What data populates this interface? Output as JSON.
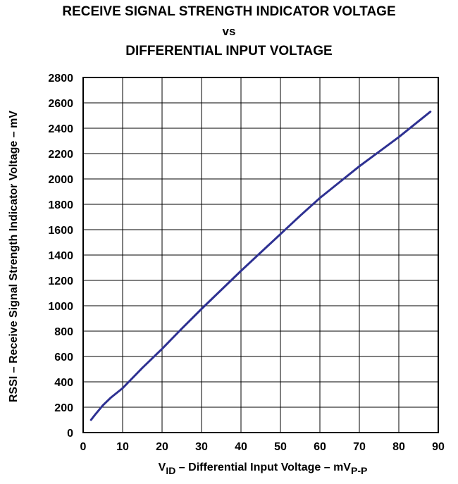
{
  "chart_data": {
    "type": "line",
    "title_lines": [
      "RECEIVE SIGNAL STRENGTH INDICATOR VOLTAGE",
      "vs",
      "DIFFERENTIAL INPUT VOLTAGE"
    ],
    "xlabel": {
      "prefix": "V",
      "sub1": "ID",
      "middle": " – Differential Input Voltage – mV",
      "sub2": "P-P"
    },
    "ylabel": "RSSI – Receive Signal Strength Indicator Voltage – mV",
    "xlim": [
      0,
      90
    ],
    "ylim": [
      0,
      2800
    ],
    "xticks": [
      0,
      10,
      20,
      30,
      40,
      50,
      60,
      70,
      80,
      90
    ],
    "yticks": [
      0,
      200,
      400,
      600,
      800,
      1000,
      1200,
      1400,
      1600,
      1800,
      2000,
      2200,
      2400,
      2600,
      2800
    ],
    "grid": true,
    "series": [
      {
        "color": "#2e3192",
        "x": [
          2,
          3,
          5,
          7,
          10,
          15,
          20,
          25,
          30,
          35,
          40,
          45,
          50,
          55,
          60,
          65,
          70,
          75,
          80,
          85,
          88
        ],
        "y": [
          100,
          140,
          215,
          275,
          350,
          510,
          660,
          820,
          975,
          1125,
          1275,
          1420,
          1565,
          1710,
          1850,
          1975,
          2100,
          2215,
          2330,
          2455,
          2530
        ]
      }
    ]
  }
}
